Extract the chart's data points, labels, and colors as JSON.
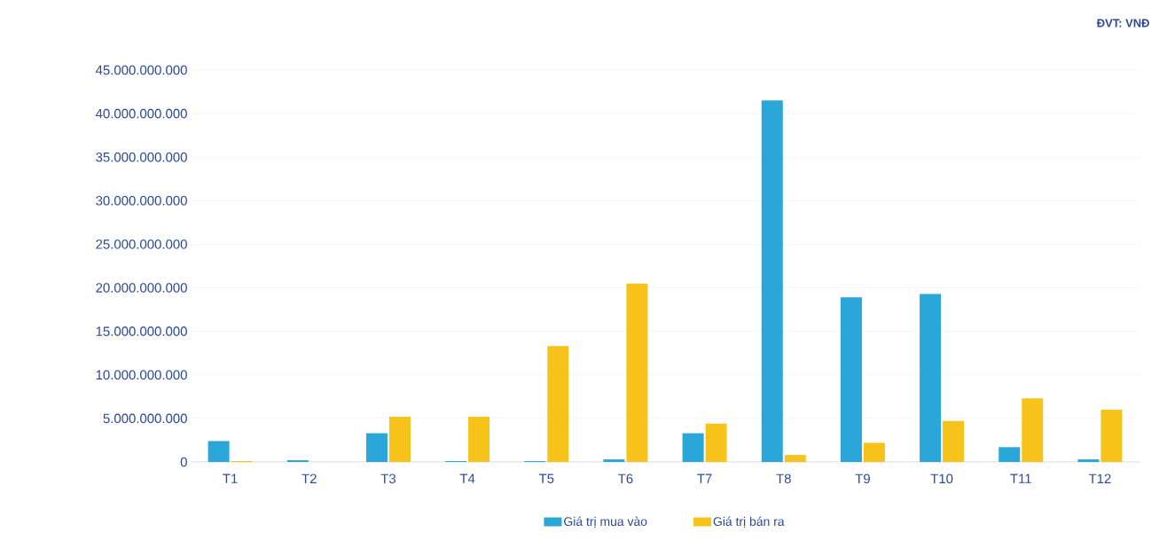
{
  "chart_data": {
    "type": "bar",
    "annotations": [
      "ĐVT: VNĐ"
    ],
    "categories": [
      "T1",
      "T2",
      "T3",
      "T4",
      "T5",
      "T6",
      "T7",
      "T8",
      "T9",
      "T10",
      "T11",
      "T12"
    ],
    "series": [
      {
        "name": "Giá trị mua vào",
        "color": "#2aa6d8",
        "values": [
          2400000000,
          200000000,
          3300000000,
          100000000,
          100000000,
          300000000,
          3300000000,
          41500000000,
          18900000000,
          19300000000,
          1700000000,
          300000000
        ]
      },
      {
        "name": "Giá trị bán ra",
        "color": "#f7c21a",
        "values": [
          100000000,
          0,
          5200000000,
          5200000000,
          13300000000,
          20500000000,
          4400000000,
          800000000,
          2200000000,
          4700000000,
          7300000000,
          6000000000
        ]
      }
    ],
    "ylim": [
      0,
      45000000000
    ],
    "yticks": [
      {
        "value": 0,
        "label": "0"
      },
      {
        "value": 5000000000,
        "label": "5.000.000.000"
      },
      {
        "value": 10000000000,
        "label": "10.000.000.000"
      },
      {
        "value": 15000000000,
        "label": "15.000.000.000"
      },
      {
        "value": 20000000000,
        "label": "20.000.000.000"
      },
      {
        "value": 25000000000,
        "label": "25.000.000.000"
      },
      {
        "value": 30000000000,
        "label": "30.000.000.000"
      },
      {
        "value": 35000000000,
        "label": "35.000.000.000"
      },
      {
        "value": 40000000000,
        "label": "40.000.000.000"
      },
      {
        "value": 45000000000,
        "label": "45.000.000.000"
      }
    ],
    "grid": "y",
    "legend": "bottom"
  }
}
